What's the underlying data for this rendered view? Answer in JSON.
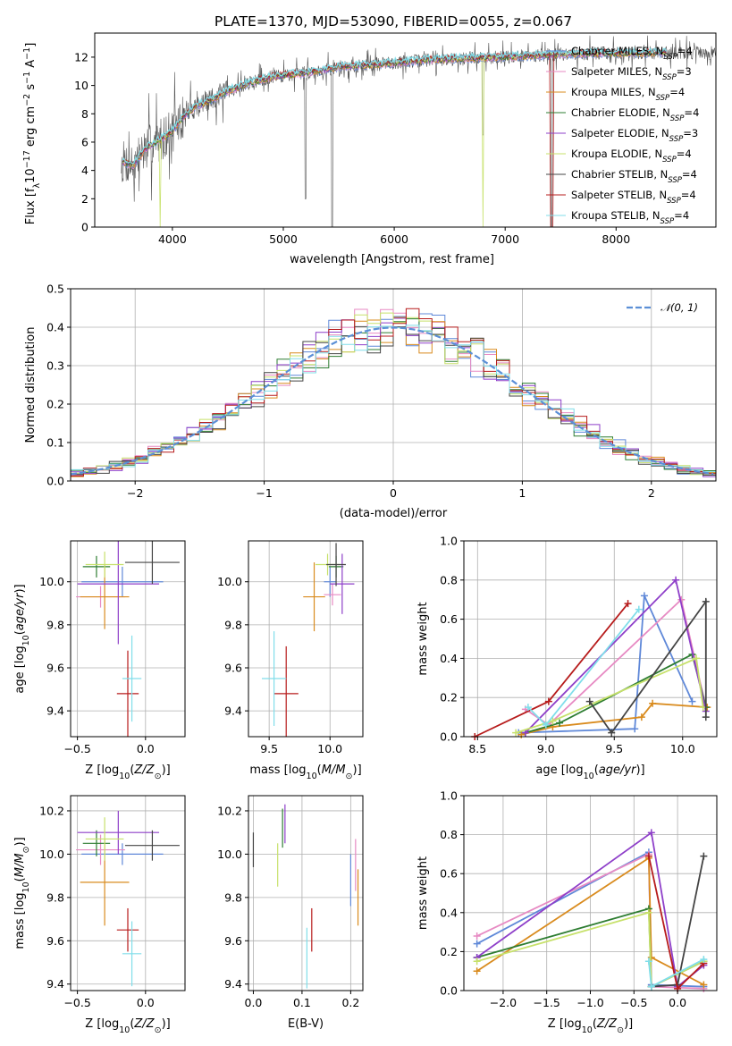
{
  "figure_title": "PLATE=1370, MJD=53090, FIBERID=0055, z=0.067",
  "series_styles": [
    {
      "name": "Chabrier MILES",
      "nssp": "4",
      "color": "#5f88d8"
    },
    {
      "name": "Salpeter MILES",
      "nssp": "3",
      "color": "#e78ac3"
    },
    {
      "name": "Kroupa MILES",
      "nssp": "4",
      "color": "#d98b1e"
    },
    {
      "name": "Chabrier ELODIE",
      "nssp": "4",
      "color": "#2e7d32"
    },
    {
      "name": "Salpeter ELODIE",
      "nssp": "3",
      "color": "#8e3fc9"
    },
    {
      "name": "Kroupa ELODIE",
      "nssp": "4",
      "color": "#c7e16b"
    },
    {
      "name": "Chabrier STELIB",
      "nssp": "4",
      "color": "#444444"
    },
    {
      "name": "Salpeter STELIB",
      "nssp": "4",
      "color": "#b71c1c"
    },
    {
      "name": "Kroupa STELIB",
      "nssp": "4",
      "color": "#80deea"
    }
  ],
  "chart_data": [
    {
      "id": "spectrum",
      "type": "line",
      "title": "PLATE=1370, MJD=53090, FIBERID=0055, z=0.067",
      "xlabel": "wavelength [Angstrom, rest frame]",
      "ylabel": "Flux [f_λ 10^-17 erg cm^-2 s^-1 A^-1]",
      "xlim": [
        3300,
        8900
      ],
      "ylim": [
        0,
        13.7
      ],
      "xticks": [
        4000,
        5000,
        6000,
        7000,
        8000
      ],
      "yticks": [
        0,
        2,
        4,
        6,
        8,
        10,
        12
      ],
      "grid": false,
      "legend_position": "right",
      "continuum_model": [
        [
          3550,
          4.6
        ],
        [
          3650,
          4.4
        ],
        [
          3750,
          5.5
        ],
        [
          3850,
          6.0
        ],
        [
          3950,
          6.5
        ],
        [
          4000,
          6.8
        ],
        [
          4100,
          7.8
        ],
        [
          4200,
          8.5
        ],
        [
          4300,
          8.8
        ],
        [
          4500,
          9.6
        ],
        [
          4700,
          10.2
        ],
        [
          4900,
          10.6
        ],
        [
          5100,
          10.8
        ],
        [
          5300,
          11.0
        ],
        [
          5500,
          11.3
        ],
        [
          5700,
          11.4
        ],
        [
          6000,
          11.6
        ],
        [
          6300,
          11.8
        ],
        [
          6600,
          11.9
        ],
        [
          7000,
          12.0
        ],
        [
          7500,
          12.2
        ],
        [
          8000,
          12.3
        ],
        [
          8400,
          12.3
        ]
      ]
    },
    {
      "id": "residuals",
      "type": "histogram",
      "xlabel": "(data-model)/error",
      "ylabel": "Normed distribution",
      "xlim": [
        -2.5,
        2.5
      ],
      "ylim": [
        0,
        0.5
      ],
      "xticks": [
        -2,
        -1,
        0,
        1,
        2
      ],
      "yticks": [
        0.0,
        0.1,
        0.2,
        0.3,
        0.4,
        0.5
      ],
      "grid": true,
      "legend_position": "top-right",
      "reference_curve": {
        "name": "N(0,1)",
        "mean": 0,
        "sigma": 1,
        "color": "#5b8fd6"
      },
      "bin_width": 0.1
    },
    {
      "id": "age_vs_z",
      "type": "errorbar",
      "xlabel": "Z [log10(Z/Z⊙)]",
      "ylabel": "age [log10(age/yr)]",
      "xlim": [
        -0.55,
        0.29
      ],
      "ylim": [
        9.28,
        10.19
      ],
      "xticks": [
        -0.5,
        0.0
      ],
      "yticks": [
        9.4,
        9.6,
        9.8,
        10.0
      ],
      "grid": true,
      "points": [
        {
          "s": 0,
          "x": -0.17,
          "y": 10.0,
          "xerr": 0.3,
          "yerr": 0.07
        },
        {
          "s": 1,
          "x": -0.33,
          "y": 9.93,
          "xerr": 0.18,
          "yerr": 0.05
        },
        {
          "s": 2,
          "x": -0.3,
          "y": 9.93,
          "xerr": 0.18,
          "yerr": 0.15
        },
        {
          "s": 3,
          "x": -0.36,
          "y": 10.07,
          "xerr": 0.1,
          "yerr": 0.05
        },
        {
          "s": 4,
          "x": -0.2,
          "y": 9.99,
          "xerr": 0.3,
          "yerr": 0.28
        },
        {
          "s": 5,
          "x": -0.3,
          "y": 10.08,
          "xerr": 0.14,
          "yerr": 0.06
        },
        {
          "s": 6,
          "x": 0.05,
          "y": 10.09,
          "xerr": 0.2,
          "yerr": 0.1
        },
        {
          "s": 7,
          "x": -0.13,
          "y": 9.48,
          "xerr": 0.08,
          "yerr": 0.2
        },
        {
          "s": 8,
          "x": -0.1,
          "y": 9.55,
          "xerr": 0.07,
          "yerr": 0.2
        }
      ]
    },
    {
      "id": "age_vs_mass",
      "type": "errorbar",
      "xlabel": "mass [log10(M/M⊙)]",
      "ylabel": "",
      "xlim": [
        9.33,
        10.27
      ],
      "ylim": [
        9.28,
        10.19
      ],
      "xticks": [
        9.5,
        10.0
      ],
      "yticks": [
        9.4,
        9.6,
        9.8,
        10.0
      ],
      "grid": true,
      "points": [
        {
          "s": 0,
          "x": 10.0,
          "y": 10.0,
          "xerr": 0.05,
          "yerr": 0.07
        },
        {
          "s": 1,
          "x": 10.02,
          "y": 9.94,
          "xerr": 0.07,
          "yerr": 0.05
        },
        {
          "s": 2,
          "x": 9.87,
          "y": 9.93,
          "xerr": 0.09,
          "yerr": 0.16
        },
        {
          "s": 3,
          "x": 10.05,
          "y": 10.07,
          "xerr": 0.06,
          "yerr": 0.05
        },
        {
          "s": 4,
          "x": 10.1,
          "y": 9.99,
          "xerr": 0.1,
          "yerr": 0.14
        },
        {
          "s": 5,
          "x": 9.98,
          "y": 10.08,
          "xerr": 0.1,
          "yerr": 0.05
        },
        {
          "s": 6,
          "x": 10.05,
          "y": 10.08,
          "xerr": 0.08,
          "yerr": 0.1
        },
        {
          "s": 7,
          "x": 9.64,
          "y": 9.48,
          "xerr": 0.1,
          "yerr": 0.22
        },
        {
          "s": 8,
          "x": 9.54,
          "y": 9.55,
          "xerr": 0.1,
          "yerr": 0.22
        }
      ]
    },
    {
      "id": "weight_vs_age",
      "type": "line",
      "xlabel": "age [log10(age/yr)]",
      "ylabel": "mass weight",
      "xlim": [
        8.4,
        10.25
      ],
      "ylim": [
        0,
        1
      ],
      "xticks": [
        8.5,
        9.0,
        9.5,
        10.0
      ],
      "yticks": [
        0.0,
        0.2,
        0.4,
        0.6,
        0.8,
        1.0
      ],
      "grid": true,
      "series": [
        {
          "s": 0,
          "x": [
            8.8,
            9.65,
            9.72,
            10.07
          ],
          "y": [
            0.02,
            0.04,
            0.72,
            0.18
          ]
        },
        {
          "s": 1,
          "x": [
            8.85,
            9.02,
            9.99,
            10.17
          ],
          "y": [
            0.14,
            0.06,
            0.7,
            0.15
          ]
        },
        {
          "s": 2,
          "x": [
            8.82,
            9.05,
            9.7,
            9.78,
            10.18
          ],
          "y": [
            0.01,
            0.05,
            0.1,
            0.17,
            0.15
          ]
        },
        {
          "s": 3,
          "x": [
            8.85,
            9.1,
            10.07,
            10.17
          ],
          "y": [
            0.02,
            0.07,
            0.42,
            0.15
          ]
        },
        {
          "s": 4,
          "x": [
            8.85,
            9.95,
            10.17
          ],
          "y": [
            0.02,
            0.8,
            0.13
          ]
        },
        {
          "s": 5,
          "x": [
            8.78,
            9.05,
            10.1,
            10.15
          ],
          "y": [
            0.02,
            0.08,
            0.4,
            0.15
          ]
        },
        {
          "s": 6,
          "x": [
            9.32,
            9.48,
            10.17,
            10.17
          ],
          "y": [
            0.18,
            0.02,
            0.69,
            0.1
          ]
        },
        {
          "s": 7,
          "x": [
            8.48,
            9.02,
            9.6
          ],
          "y": [
            0.0,
            0.18,
            0.68
          ]
        },
        {
          "s": 8,
          "x": [
            8.87,
            9.0,
            9.68
          ],
          "y": [
            0.15,
            0.06,
            0.65
          ]
        }
      ]
    },
    {
      "id": "mass_vs_z",
      "type": "errorbar",
      "xlabel": "Z [log10(Z/Z⊙)]",
      "ylabel": "mass [log10(M/M⊙)]",
      "xlim": [
        -0.55,
        0.29
      ],
      "ylim": [
        9.37,
        10.27
      ],
      "xticks": [
        -0.5,
        0.0
      ],
      "yticks": [
        9.4,
        9.6,
        9.8,
        10.0,
        10.2
      ],
      "grid": true,
      "points": [
        {
          "s": 0,
          "x": -0.17,
          "y": 10.0,
          "xerr": 0.3,
          "yerr": 0.05
        },
        {
          "s": 1,
          "x": -0.33,
          "y": 10.02,
          "xerr": 0.18,
          "yerr": 0.07
        },
        {
          "s": 2,
          "x": -0.3,
          "y": 9.87,
          "xerr": 0.18,
          "yerr": 0.2
        },
        {
          "s": 3,
          "x": -0.36,
          "y": 10.05,
          "xerr": 0.1,
          "yerr": 0.06
        },
        {
          "s": 4,
          "x": -0.2,
          "y": 10.1,
          "xerr": 0.3,
          "yerr": 0.1
        },
        {
          "s": 5,
          "x": -0.3,
          "y": 10.07,
          "xerr": 0.14,
          "yerr": 0.1
        },
        {
          "s": 6,
          "x": 0.05,
          "y": 10.04,
          "xerr": 0.2,
          "yerr": 0.07
        },
        {
          "s": 7,
          "x": -0.13,
          "y": 9.65,
          "xerr": 0.08,
          "yerr": 0.1
        },
        {
          "s": 8,
          "x": -0.1,
          "y": 9.54,
          "xerr": 0.07,
          "yerr": 0.15
        }
      ]
    },
    {
      "id": "mass_vs_ebv",
      "type": "errorbar",
      "xlabel": "E(B-V)",
      "ylabel": "",
      "xlim": [
        -0.01,
        0.225
      ],
      "ylim": [
        9.37,
        10.27
      ],
      "xticks": [
        0.0,
        0.1,
        0.2
      ],
      "yticks": [
        9.4,
        9.6,
        9.8,
        10.0,
        10.2
      ],
      "grid": true,
      "points": [
        {
          "s": 0,
          "x": 0.2,
          "y": 9.88,
          "xerr": 0.0,
          "yerr": 0.12
        },
        {
          "s": 1,
          "x": 0.21,
          "y": 9.95,
          "xerr": 0.0,
          "yerr": 0.12
        },
        {
          "s": 2,
          "x": 0.215,
          "y": 9.8,
          "xerr": 0.0,
          "yerr": 0.13
        },
        {
          "s": 3,
          "x": 0.06,
          "y": 10.12,
          "xerr": 0.0,
          "yerr": 0.09
        },
        {
          "s": 4,
          "x": 0.065,
          "y": 10.14,
          "xerr": 0.0,
          "yerr": 0.09
        },
        {
          "s": 5,
          "x": 0.05,
          "y": 9.95,
          "xerr": 0.0,
          "yerr": 0.1
        },
        {
          "s": 6,
          "x": 0.0,
          "y": 10.02,
          "xerr": 0.0,
          "yerr": 0.08
        },
        {
          "s": 7,
          "x": 0.12,
          "y": 9.65,
          "xerr": 0.0,
          "yerr": 0.1
        },
        {
          "s": 8,
          "x": 0.11,
          "y": 9.52,
          "xerr": 0.0,
          "yerr": 0.14
        }
      ]
    },
    {
      "id": "weight_vs_z",
      "type": "line",
      "xlabel": "Z [log10(Z/Z⊙)]",
      "ylabel": "mass weight",
      "xlim": [
        -2.45,
        0.45
      ],
      "ylim": [
        0,
        1
      ],
      "xticks": [
        -2.0,
        -1.5,
        -1.0,
        -0.5,
        0.0
      ],
      "yticks": [
        0.0,
        0.2,
        0.4,
        0.6,
        0.8,
        1.0
      ],
      "grid": true,
      "series": [
        {
          "s": 0,
          "x": [
            -2.3,
            -0.33,
            -0.3,
            0.3
          ],
          "y": [
            0.24,
            0.71,
            0.03,
            0.02
          ]
        },
        {
          "s": 1,
          "x": [
            -2.3,
            -0.33,
            -0.3,
            0.3
          ],
          "y": [
            0.28,
            0.7,
            0.02,
            0.01
          ]
        },
        {
          "s": 2,
          "x": [
            -2.3,
            -0.33,
            -0.3,
            0.3
          ],
          "y": [
            0.1,
            0.68,
            0.17,
            0.03
          ]
        },
        {
          "s": 3,
          "x": [
            -2.3,
            -0.33,
            -0.3,
            0.3
          ],
          "y": [
            0.17,
            0.42,
            0.02,
            0.15
          ]
        },
        {
          "s": 4,
          "x": [
            -2.3,
            -0.3,
            0.0,
            0.3
          ],
          "y": [
            0.17,
            0.81,
            0.02,
            0.13
          ]
        },
        {
          "s": 5,
          "x": [
            -2.3,
            -0.33,
            -0.3,
            0.3
          ],
          "y": [
            0.15,
            0.4,
            0.02,
            0.15
          ]
        },
        {
          "s": 6,
          "x": [
            -0.3,
            0.0,
            0.3
          ],
          "y": [
            0.02,
            0.03,
            0.69
          ]
        },
        {
          "s": 7,
          "x": [
            -0.33,
            0.0,
            0.3
          ],
          "y": [
            0.69,
            0.01,
            0.14
          ]
        },
        {
          "s": 8,
          "x": [
            -0.33,
            -0.3,
            0.3
          ],
          "y": [
            0.15,
            0.02,
            0.16
          ]
        }
      ]
    }
  ]
}
